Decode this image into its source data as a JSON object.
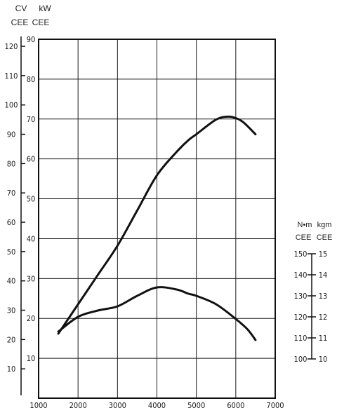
{
  "chart_data": {
    "type": "line",
    "x_ticks": [
      "1000",
      "2000",
      "3000",
      "4000",
      "5000",
      "6000",
      "7000"
    ],
    "xlim": [
      1000,
      7000
    ],
    "axes": {
      "kw": {
        "units": [
          "kW",
          "CEE"
        ],
        "ticks": [
          "10",
          "20",
          "30",
          "40",
          "50",
          "60",
          "70",
          "80",
          "90"
        ],
        "ylim": [
          0,
          90
        ]
      },
      "cv": {
        "units": [
          "CV",
          "CEE"
        ],
        "ticks": [
          "10",
          "20",
          "30",
          "40",
          "50",
          "60",
          "70",
          "80",
          "90",
          "100",
          "110",
          "120"
        ],
        "range": [
          0,
          122.4
        ]
      },
      "nm": {
        "units": [
          "N•m",
          "CEE"
        ],
        "ticks": [
          "100",
          "110",
          "120",
          "130",
          "140",
          "150"
        ],
        "range": [
          100,
          150
        ]
      },
      "kgm": {
        "units": [
          "kgm",
          "CEE"
        ],
        "ticks": [
          "10",
          "11",
          "12",
          "13",
          "14",
          "15"
        ],
        "range": [
          10,
          15
        ]
      }
    },
    "series": [
      {
        "x": [
          1500,
          2000,
          2500,
          3000,
          3500,
          4000,
          4500,
          4800,
          5000,
          5500,
          5800,
          6000,
          6200,
          6500
        ],
        "y": [
          22,
          32,
          42,
          52,
          64,
          76,
          84,
          88,
          90,
          95,
          96,
          95.5,
          94,
          90
        ]
      },
      {
        "x": [
          1500,
          2000,
          2500,
          3000,
          3500,
          4000,
          4500,
          4800,
          5000,
          5500,
          6000,
          6300,
          6500
        ],
        "y": [
          113,
          120,
          123,
          125,
          130,
          134,
          133,
          131,
          130,
          126,
          119,
          114,
          109
        ]
      }
    ]
  }
}
